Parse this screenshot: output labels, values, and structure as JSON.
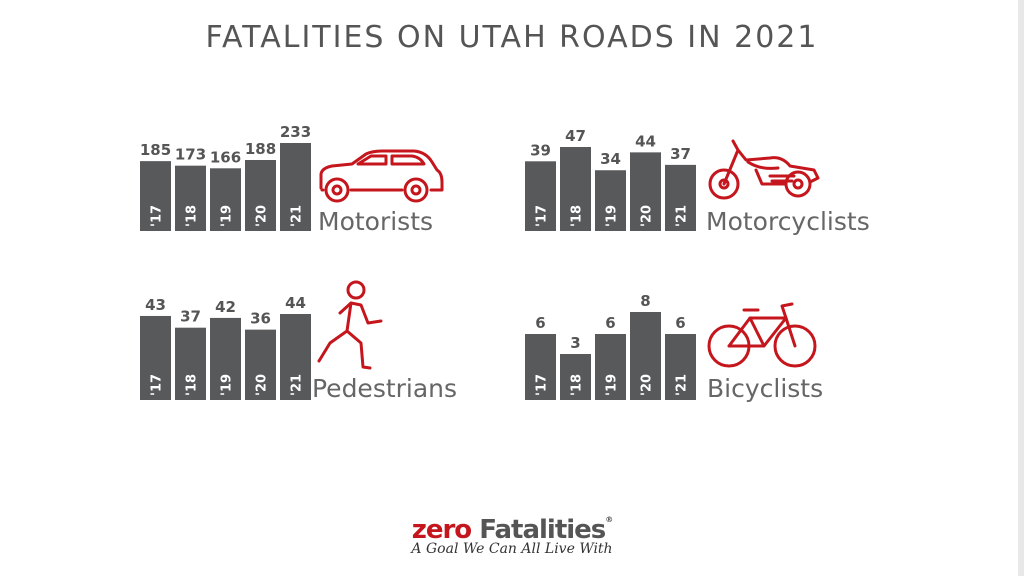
{
  "title": "FATALITIES ON UTAH ROADS IN 2021",
  "colors": {
    "bar": "#58595b",
    "accent": "#c4161c",
    "text": "#555555"
  },
  "chart_data": [
    {
      "type": "bar",
      "title": "Motorists",
      "icon": "car-icon",
      "categories": [
        "'17",
        "'18",
        "'19",
        "'20",
        "'21"
      ],
      "values": [
        185,
        173,
        166,
        188,
        233
      ]
    },
    {
      "type": "bar",
      "title": "Motorcyclists",
      "icon": "motorcycle-icon",
      "categories": [
        "'17",
        "'18",
        "'19",
        "'20",
        "'21"
      ],
      "values": [
        39,
        47,
        34,
        44,
        37
      ]
    },
    {
      "type": "bar",
      "title": "Pedestrians",
      "icon": "pedestrian-icon",
      "categories": [
        "'17",
        "'18",
        "'19",
        "'20",
        "'21"
      ],
      "values": [
        43,
        37,
        42,
        36,
        44
      ]
    },
    {
      "type": "bar",
      "title": "Bicyclists",
      "icon": "bicycle-icon",
      "categories": [
        "'17",
        "'18",
        "'19",
        "'20",
        "'21"
      ],
      "values": [
        6,
        3,
        6,
        8,
        6
      ]
    }
  ],
  "logo": {
    "zero": "zero",
    "fatalities": "Fatalities",
    "registered": "®",
    "tagline": "A Goal We Can All Live With"
  }
}
